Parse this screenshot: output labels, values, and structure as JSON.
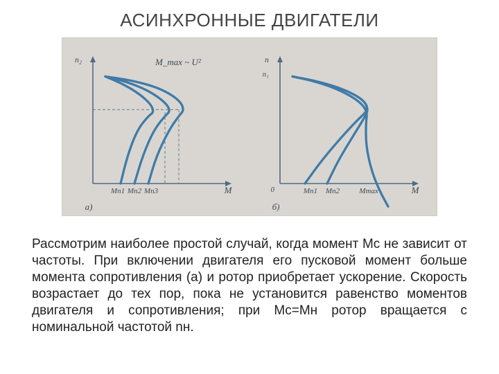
{
  "title": "АСИНХРОННЫЕ ДВИГАТЕЛИ",
  "caption": "Рассмотрим наиболее простой случай, когда момент Mc не зависит от частоты. При включении двигателя его пусковой момент больше момента сопротивления (а) и ротор приобретает ускорение. Скорость возрастает до тех пор, пока не установится равенство моментов двигателя и сопротивления; при Mc=Mн ротор вращается с номинальной частотой nн.",
  "figure": {
    "type": "line",
    "background_color": "#d9d6d1",
    "axis_color": "#4f6a83",
    "curve_color": "#3f7ba8",
    "curve_stroke_width": 3.3,
    "axis_stroke_width": 1.6,
    "dash_color": "#64798a",
    "dash_pattern": "4 3",
    "label_color": "#3a4a57",
    "label_fontsize": 11,
    "panel_a": {
      "sublabel": "а)",
      "y_axis_label": "n₂",
      "x_axis_label": "M",
      "annotation": "M_max ~ U²",
      "x_ticks": [
        "Mп1",
        "Mп2",
        "Mп3"
      ],
      "dashed_refs": {
        "y_level": 0.58,
        "x_end": 0.62
      },
      "curves": [
        [
          [
            0.2,
            0.0
          ],
          [
            0.25,
            0.22
          ],
          [
            0.32,
            0.42
          ],
          [
            0.4,
            0.53
          ],
          [
            0.44,
            0.56
          ],
          [
            0.42,
            0.62
          ],
          [
            0.34,
            0.7
          ],
          [
            0.22,
            0.78
          ],
          [
            0.09,
            0.84
          ]
        ],
        [
          [
            0.3,
            0.0
          ],
          [
            0.36,
            0.22
          ],
          [
            0.44,
            0.42
          ],
          [
            0.52,
            0.53
          ],
          [
            0.56,
            0.57
          ],
          [
            0.52,
            0.64
          ],
          [
            0.4,
            0.73
          ],
          [
            0.24,
            0.8
          ],
          [
            0.09,
            0.84
          ]
        ],
        [
          [
            0.4,
            0.0
          ],
          [
            0.46,
            0.22
          ],
          [
            0.55,
            0.42
          ],
          [
            0.62,
            0.53
          ],
          [
            0.66,
            0.58
          ],
          [
            0.62,
            0.66
          ],
          [
            0.48,
            0.75
          ],
          [
            0.28,
            0.81
          ],
          [
            0.09,
            0.84
          ]
        ]
      ]
    },
    "panel_b": {
      "sublabel": "б)",
      "y_axis_label": "n",
      "y_tick_label": "n₁",
      "origin_label": "0",
      "x_axis_label": "M",
      "x_ticks": [
        "Mп1",
        "Mп2",
        "Mmax"
      ],
      "curves": [
        [
          [
            0.18,
            0.0
          ],
          [
            0.3,
            0.18
          ],
          [
            0.44,
            0.36
          ],
          [
            0.56,
            0.5
          ],
          [
            0.64,
            0.58
          ],
          [
            0.6,
            0.66
          ],
          [
            0.46,
            0.74
          ],
          [
            0.28,
            0.8
          ],
          [
            0.09,
            0.84
          ]
        ],
        [
          [
            0.34,
            0.0
          ],
          [
            0.42,
            0.18
          ],
          [
            0.52,
            0.36
          ],
          [
            0.6,
            0.5
          ],
          [
            0.64,
            0.58
          ],
          [
            0.6,
            0.66
          ],
          [
            0.46,
            0.74
          ],
          [
            0.28,
            0.8
          ],
          [
            0.09,
            0.84
          ]
        ],
        [
          [
            0.78,
            -0.18
          ],
          [
            0.72,
            -0.06
          ],
          [
            0.66,
            0.1
          ],
          [
            0.62,
            0.3
          ],
          [
            0.62,
            0.48
          ],
          [
            0.63,
            0.56
          ],
          [
            0.58,
            0.64
          ],
          [
            0.44,
            0.73
          ],
          [
            0.26,
            0.8
          ],
          [
            0.09,
            0.84
          ]
        ]
      ]
    }
  }
}
